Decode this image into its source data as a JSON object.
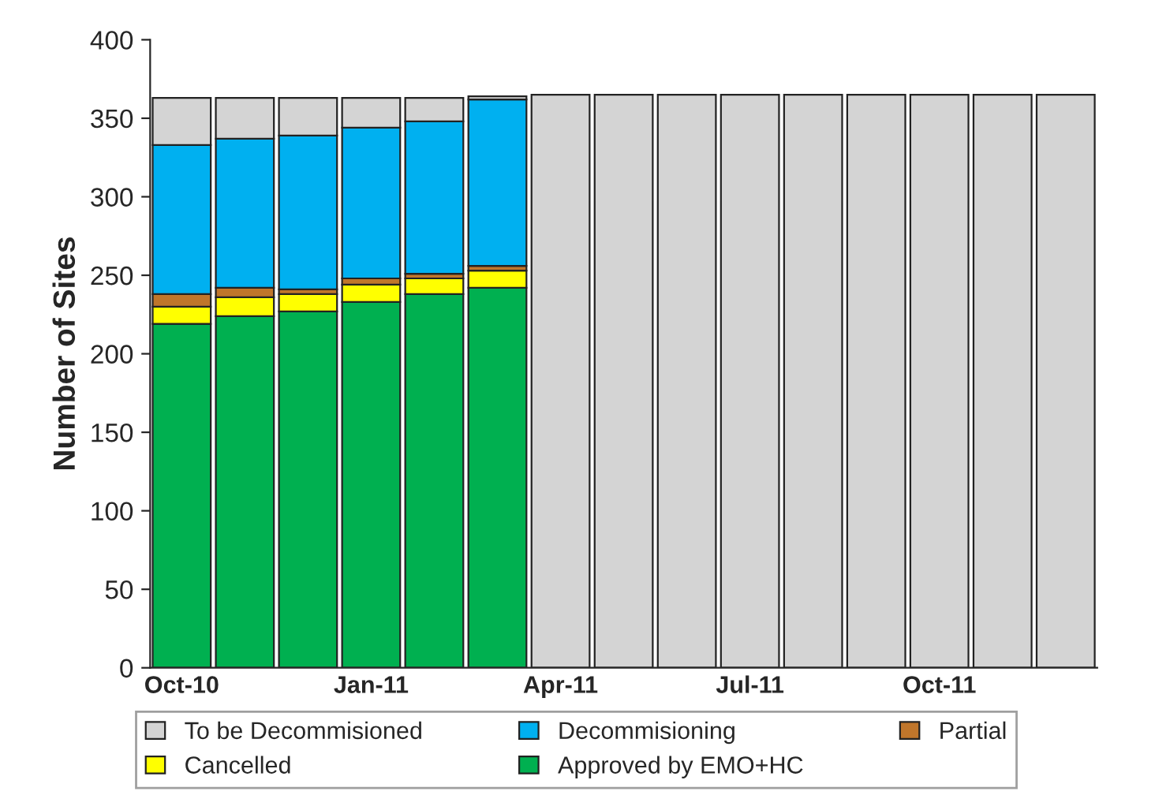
{
  "chart_data": {
    "type": "bar",
    "stacked": true,
    "ylabel": "Number of Sites",
    "categories": [
      "Oct-10",
      null,
      null,
      "Jan-11",
      null,
      null,
      "Apr-11",
      null,
      null,
      "Jul-11",
      null,
      null,
      "Oct-11",
      null,
      null
    ],
    "series": [
      {
        "name": "Approved by EMO+HC",
        "color": "#00b050",
        "values": [
          219,
          224,
          227,
          233,
          238,
          242,
          null,
          null,
          null,
          null,
          null,
          null,
          null,
          null,
          null
        ]
      },
      {
        "name": "Cancelled",
        "color": "#ffff00",
        "values": [
          11,
          12,
          11,
          11,
          10,
          11,
          null,
          null,
          null,
          null,
          null,
          null,
          null,
          null,
          null
        ]
      },
      {
        "name": "Partial",
        "color": "#c0762b",
        "values": [
          8,
          6,
          3,
          4,
          3,
          3,
          null,
          null,
          null,
          null,
          null,
          null,
          null,
          null,
          null
        ]
      },
      {
        "name": "Decommisioning",
        "color": "#00b0f0",
        "values": [
          95,
          95,
          98,
          96,
          97,
          106,
          null,
          null,
          null,
          null,
          null,
          null,
          null,
          null,
          null
        ]
      },
      {
        "name": "To be Decommisioned",
        "color": "#d4d4d4",
        "values": [
          30,
          26,
          24,
          19,
          15,
          2,
          365,
          365,
          365,
          365,
          365,
          365,
          365,
          365,
          365
        ]
      }
    ],
    "ylim": [
      0,
      400
    ],
    "yticks": [
      0,
      50,
      100,
      150,
      200,
      250,
      300,
      350,
      400
    ],
    "grid": false,
    "legend": "bottom"
  }
}
